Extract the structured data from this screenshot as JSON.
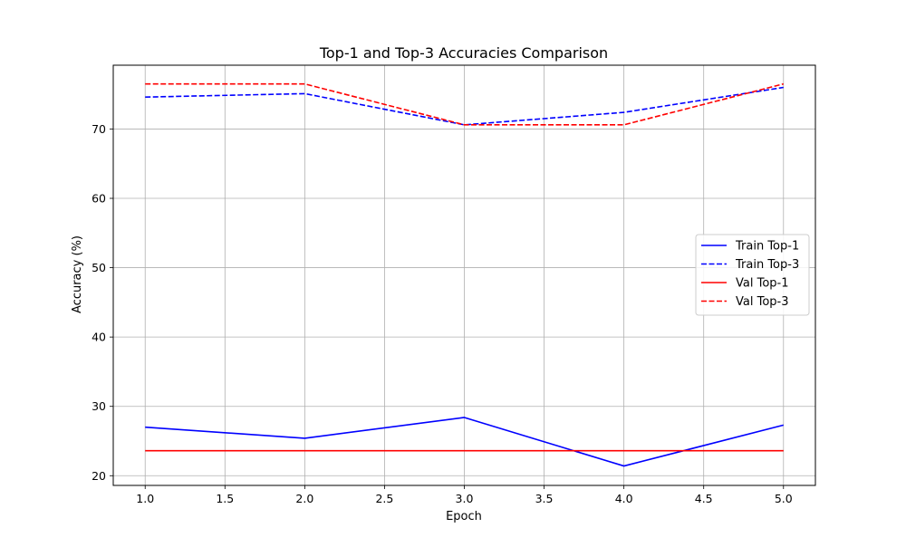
{
  "chart_data": {
    "type": "line",
    "title": "Top-1 and Top-3 Accuracies Comparison",
    "xlabel": "Epoch",
    "ylabel": "Accuracy (%)",
    "x": [
      1,
      2,
      3,
      4,
      5
    ],
    "xlim": [
      0.8,
      5.2
    ],
    "ylim": [
      18.6,
      79.2
    ],
    "xticks": [
      1.0,
      1.5,
      2.0,
      2.5,
      3.0,
      3.5,
      4.0,
      4.5,
      5.0
    ],
    "xtick_labels": [
      "1.0",
      "1.5",
      "2.0",
      "2.5",
      "3.0",
      "3.5",
      "4.0",
      "4.5",
      "5.0"
    ],
    "yticks": [
      20,
      30,
      40,
      50,
      60,
      70
    ],
    "ytick_labels": [
      "20",
      "30",
      "40",
      "50",
      "60",
      "70"
    ],
    "grid": true,
    "legend_position": "center-right",
    "series": [
      {
        "name": "Train Top-1",
        "values": [
          27.0,
          25.4,
          28.4,
          21.4,
          27.3
        ],
        "color": "#0000ff",
        "dash": "solid"
      },
      {
        "name": "Train Top-3",
        "values": [
          74.6,
          75.1,
          70.6,
          72.4,
          76.0
        ],
        "color": "#0000ff",
        "dash": "dashed"
      },
      {
        "name": "Val Top-1",
        "values": [
          23.6,
          23.6,
          23.6,
          23.6,
          23.6
        ],
        "color": "#ff0000",
        "dash": "solid"
      },
      {
        "name": "Val Top-3",
        "values": [
          76.5,
          76.5,
          70.6,
          70.6,
          76.5
        ],
        "color": "#ff0000",
        "dash": "dashed"
      }
    ]
  }
}
